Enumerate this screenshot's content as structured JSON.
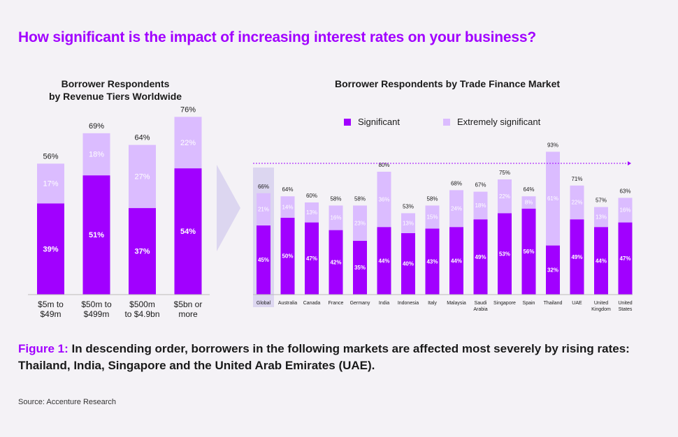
{
  "headline": "How significant is the impact of increasing interest rates on your business?",
  "left_chart_title_line1": "Borrower Respondents",
  "left_chart_title_line2": "by Revenue Tiers Worldwide",
  "right_chart_title": "Borrower Respondents by Trade Finance Market",
  "legend": {
    "significant": "Significant",
    "extremely_significant": "Extremely significant"
  },
  "caption_lead": "Figure 1:",
  "caption_text": "In descending order, borrowers in the following markets are affected most severely by rising rates: Thailand, India, Singapore and the United Arab Emirates (UAE).",
  "source": "Source: Accenture Research",
  "colors": {
    "significant": "#a100ff",
    "extremely_significant": "#dbbcff",
    "highlight": "#dcd6f0",
    "dashed_line": "#a100ff"
  },
  "chart_data": [
    {
      "type": "bar",
      "stacked": true,
      "title": "Borrower Respondents by Revenue Tiers Worldwide",
      "categories": [
        [
          "$5m to",
          "$49m"
        ],
        [
          "$50m to",
          "$499m"
        ],
        [
          "$500m",
          "to $4.9bn"
        ],
        [
          "$5bn or",
          "more"
        ]
      ],
      "series": [
        {
          "name": "Significant",
          "values": [
            39,
            51,
            37,
            54
          ]
        },
        {
          "name": "Extremely significant",
          "values": [
            17,
            18,
            27,
            22
          ]
        }
      ],
      "totals": [
        56,
        69,
        64,
        76
      ],
      "ylim": [
        0,
        100
      ]
    },
    {
      "type": "bar",
      "stacked": true,
      "title": "Borrower Respondents by Trade Finance Market",
      "categories": [
        [
          "Global"
        ],
        [
          "Australia"
        ],
        [
          "Canada"
        ],
        [
          "France"
        ],
        [
          "Germany"
        ],
        [
          "India"
        ],
        [
          "Indonesia"
        ],
        [
          "Italy"
        ],
        [
          "Malaysia"
        ],
        [
          "Saudi",
          "Arabia"
        ],
        [
          "Singapore"
        ],
        [
          "Spain"
        ],
        [
          "Thailand"
        ],
        [
          "UAE"
        ],
        [
          "United",
          "Kingdom"
        ],
        [
          "United",
          "States"
        ]
      ],
      "series": [
        {
          "name": "Significant",
          "values": [
            45,
            50,
            47,
            42,
            35,
            44,
            40,
            43,
            44,
            49,
            53,
            56,
            32,
            49,
            44,
            47
          ]
        },
        {
          "name": "Extremely significant",
          "values": [
            21,
            14,
            13,
            16,
            23,
            36,
            13,
            15,
            24,
            18,
            22,
            8,
            61,
            22,
            13,
            16
          ]
        }
      ],
      "totals": [
        66,
        64,
        60,
        58,
        58,
        80,
        53,
        58,
        68,
        67,
        75,
        64,
        93,
        71,
        57,
        63
      ],
      "highlight_category": "Global",
      "ylim": [
        0,
        100
      ]
    }
  ]
}
